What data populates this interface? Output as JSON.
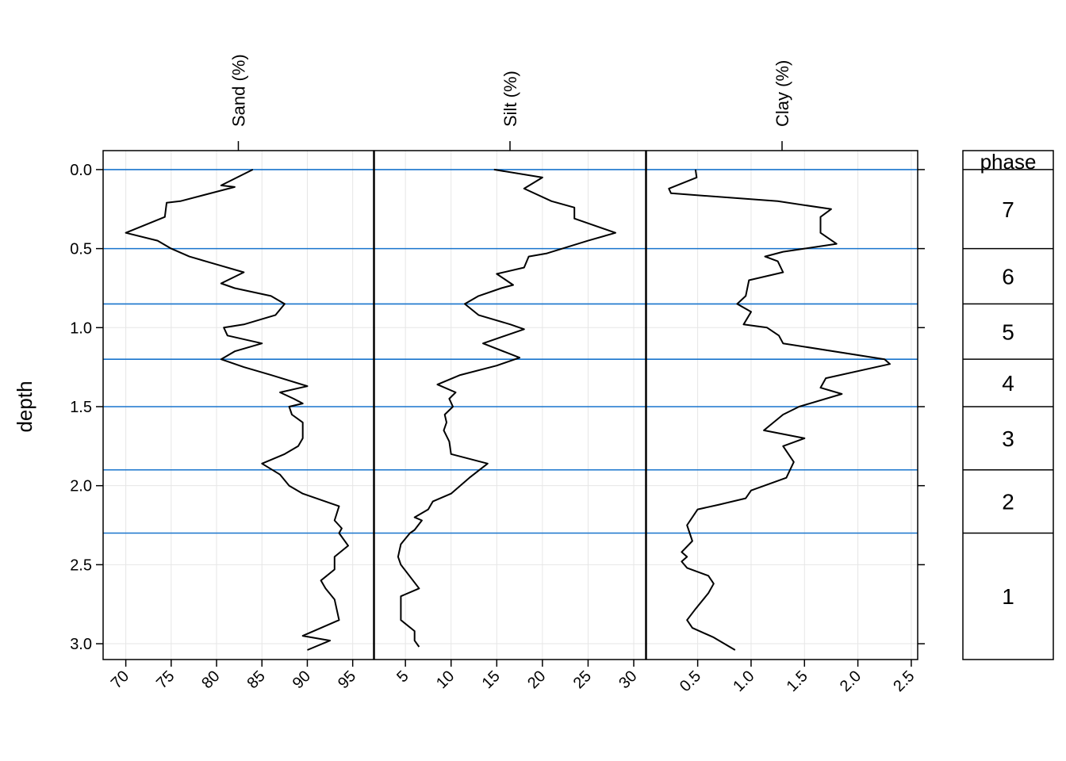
{
  "chart_data": {
    "type": "line",
    "ylabel": "depth",
    "ylim": [
      3.1,
      -0.12
    ],
    "y_reversed": true,
    "y_ticks": [
      0.0,
      0.5,
      1.0,
      1.5,
      2.0,
      2.5,
      3.0
    ],
    "y_tick_labels": [
      "0.0",
      "0.5",
      "1.0",
      "1.5",
      "2.0",
      "2.5",
      "3.0"
    ],
    "grid": true,
    "boundary_color": "#1874cd",
    "phase_boundaries": [
      0.0,
      0.5,
      0.85,
      1.2,
      1.5,
      1.9,
      2.3
    ],
    "legend": {
      "title": "phase",
      "entries": [
        {
          "label": "7",
          "from": 0.0,
          "to": 0.5
        },
        {
          "label": "6",
          "from": 0.5,
          "to": 0.85
        },
        {
          "label": "5",
          "from": 0.85,
          "to": 1.2
        },
        {
          "label": "4",
          "from": 1.2,
          "to": 1.5
        },
        {
          "label": "3",
          "from": 1.5,
          "to": 1.9
        },
        {
          "label": "2",
          "from": 1.9,
          "to": 2.3
        },
        {
          "label": "1",
          "from": 2.3,
          "to": 3.1
        }
      ]
    },
    "panels": [
      {
        "name": "Sand (%)",
        "xlim": [
          67.5,
          97.3
        ],
        "x_ticks": [
          70,
          75,
          80,
          85,
          90,
          95
        ],
        "x_tick_labels": [
          "70",
          "75",
          "80",
          "85",
          "90",
          "95"
        ],
        "points": [
          [
            84,
            0.0
          ],
          [
            80.5,
            0.1
          ],
          [
            82,
            0.11
          ],
          [
            76,
            0.2
          ],
          [
            74.5,
            0.21
          ],
          [
            74.3,
            0.3
          ],
          [
            70,
            0.4
          ],
          [
            73.5,
            0.45
          ],
          [
            75,
            0.5
          ],
          [
            77,
            0.55
          ],
          [
            80,
            0.6
          ],
          [
            83,
            0.65
          ],
          [
            80.5,
            0.72
          ],
          [
            82,
            0.75
          ],
          [
            86,
            0.8
          ],
          [
            87.5,
            0.85
          ],
          [
            86.5,
            0.92
          ],
          [
            83,
            0.98
          ],
          [
            80.8,
            1.0
          ],
          [
            81.2,
            1.05
          ],
          [
            85,
            1.1
          ],
          [
            82,
            1.15
          ],
          [
            80.5,
            1.2
          ],
          [
            83,
            1.25
          ],
          [
            86,
            1.3
          ],
          [
            90,
            1.37
          ],
          [
            87,
            1.41
          ],
          [
            88.5,
            1.45
          ],
          [
            89.5,
            1.48
          ],
          [
            88,
            1.5
          ],
          [
            88.3,
            1.55
          ],
          [
            89.5,
            1.6
          ],
          [
            89.5,
            1.7
          ],
          [
            89,
            1.75
          ],
          [
            87.5,
            1.8
          ],
          [
            85,
            1.86
          ],
          [
            87,
            1.93
          ],
          [
            88,
            2.0
          ],
          [
            89.5,
            2.05
          ],
          [
            93.5,
            2.13
          ],
          [
            93,
            2.22
          ],
          [
            93.8,
            2.27
          ],
          [
            93.5,
            2.3
          ],
          [
            94.5,
            2.38
          ],
          [
            93,
            2.45
          ],
          [
            93,
            2.53
          ],
          [
            91.5,
            2.6
          ],
          [
            92,
            2.65
          ],
          [
            93,
            2.72
          ],
          [
            93.5,
            2.85
          ],
          [
            89.5,
            2.95
          ],
          [
            92.5,
            2.98
          ],
          [
            90,
            3.04
          ]
        ]
      },
      {
        "name": "Silt (%)",
        "xlim": [
          1.6,
          31.3
        ],
        "x_ticks": [
          5,
          10,
          15,
          20,
          25,
          30
        ],
        "x_tick_labels": [
          "5",
          "10",
          "15",
          "20",
          "25",
          "30"
        ],
        "points": [
          [
            14.7,
            0.0
          ],
          [
            20,
            0.05
          ],
          [
            18,
            0.12
          ],
          [
            21,
            0.2
          ],
          [
            23.5,
            0.24
          ],
          [
            23.5,
            0.31
          ],
          [
            28,
            0.4
          ],
          [
            25,
            0.45
          ],
          [
            20.5,
            0.53
          ],
          [
            18.5,
            0.55
          ],
          [
            18,
            0.62
          ],
          [
            15,
            0.66
          ],
          [
            16.8,
            0.73
          ],
          [
            15.5,
            0.75
          ],
          [
            13,
            0.8
          ],
          [
            11.5,
            0.85
          ],
          [
            13,
            0.92
          ],
          [
            16.5,
            0.98
          ],
          [
            18,
            1.01
          ],
          [
            13.5,
            1.1
          ],
          [
            17.5,
            1.19
          ],
          [
            15,
            1.24
          ],
          [
            11,
            1.3
          ],
          [
            8.5,
            1.36
          ],
          [
            10.5,
            1.41
          ],
          [
            9.8,
            1.45
          ],
          [
            10.2,
            1.5
          ],
          [
            9.3,
            1.55
          ],
          [
            9.5,
            1.6
          ],
          [
            9.2,
            1.65
          ],
          [
            9.8,
            1.72
          ],
          [
            10,
            1.8
          ],
          [
            14,
            1.86
          ],
          [
            12,
            1.95
          ],
          [
            10,
            2.05
          ],
          [
            8,
            2.1
          ],
          [
            7.5,
            2.15
          ],
          [
            6,
            2.2
          ],
          [
            6.8,
            2.22
          ],
          [
            6,
            2.28
          ],
          [
            5.5,
            2.3
          ],
          [
            4.5,
            2.37
          ],
          [
            4.2,
            2.45
          ],
          [
            4.5,
            2.5
          ],
          [
            6.5,
            2.65
          ],
          [
            4.5,
            2.7
          ],
          [
            4.5,
            2.85
          ],
          [
            6,
            2.92
          ],
          [
            6,
            2.98
          ],
          [
            6.5,
            3.02
          ]
        ]
      },
      {
        "name": "Clay (%)",
        "xlim": [
          0.02,
          2.56
        ],
        "x_ticks": [
          0.5,
          1.0,
          1.5,
          2.0,
          2.5
        ],
        "x_tick_labels": [
          "0.5",
          "1.0",
          "1.5",
          "2.0",
          "2.5"
        ],
        "points": [
          [
            0.48,
            0.0
          ],
          [
            0.49,
            0.05
          ],
          [
            0.23,
            0.12
          ],
          [
            0.25,
            0.15
          ],
          [
            1.25,
            0.2
          ],
          [
            1.75,
            0.25
          ],
          [
            1.65,
            0.3
          ],
          [
            1.65,
            0.4
          ],
          [
            1.8,
            0.47
          ],
          [
            1.5,
            0.5
          ],
          [
            1.3,
            0.52
          ],
          [
            1.13,
            0.55
          ],
          [
            1.25,
            0.58
          ],
          [
            1.3,
            0.65
          ],
          [
            0.98,
            0.7
          ],
          [
            0.95,
            0.8
          ],
          [
            0.87,
            0.85
          ],
          [
            1.0,
            0.9
          ],
          [
            0.93,
            0.98
          ],
          [
            1.15,
            1.0
          ],
          [
            1.26,
            1.05
          ],
          [
            1.3,
            1.1
          ],
          [
            2.25,
            1.2
          ],
          [
            2.3,
            1.23
          ],
          [
            1.7,
            1.32
          ],
          [
            1.65,
            1.38
          ],
          [
            1.85,
            1.42
          ],
          [
            1.45,
            1.5
          ],
          [
            1.3,
            1.55
          ],
          [
            1.12,
            1.65
          ],
          [
            1.5,
            1.7
          ],
          [
            1.3,
            1.75
          ],
          [
            1.4,
            1.85
          ],
          [
            1.33,
            1.95
          ],
          [
            1.0,
            2.03
          ],
          [
            0.95,
            2.08
          ],
          [
            0.7,
            2.12
          ],
          [
            0.5,
            2.15
          ],
          [
            0.4,
            2.25
          ],
          [
            0.45,
            2.35
          ],
          [
            0.35,
            2.42
          ],
          [
            0.4,
            2.45
          ],
          [
            0.35,
            2.48
          ],
          [
            0.4,
            2.52
          ],
          [
            0.6,
            2.57
          ],
          [
            0.65,
            2.62
          ],
          [
            0.6,
            2.68
          ],
          [
            0.48,
            2.78
          ],
          [
            0.4,
            2.85
          ],
          [
            0.45,
            2.9
          ],
          [
            0.65,
            2.96
          ],
          [
            0.85,
            3.04
          ]
        ]
      }
    ]
  }
}
